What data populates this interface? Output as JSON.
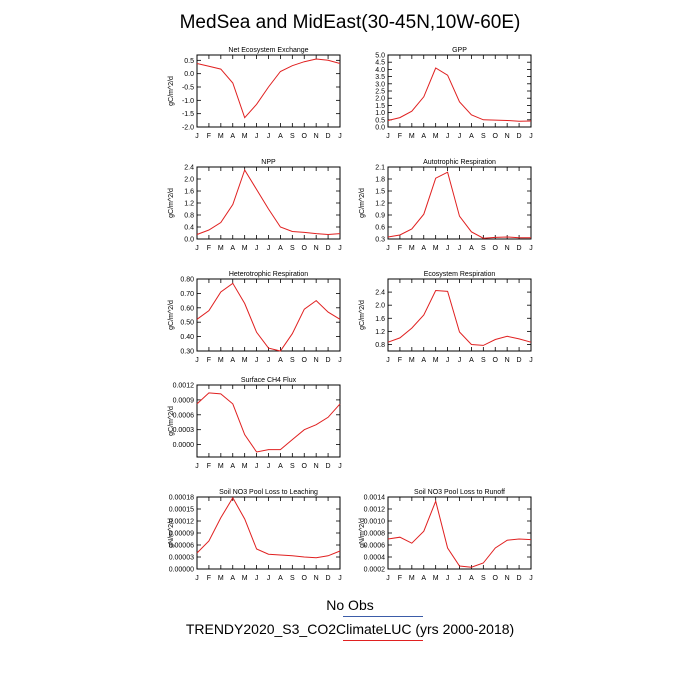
{
  "title": "MedSea and MidEast(30-45N,10W-60E)",
  "legend": {
    "obs_label": "No Obs",
    "model_label": "TRENDY2020_S3_CO2ClimateLUC (yrs 2000-2018)",
    "obs_color": "#3b5ca8",
    "model_color": "#e02020"
  },
  "chart_data": [
    {
      "type": "line",
      "title": "Net Ecosystem Exchange",
      "ylabel": "gC/m^2/d",
      "categories": [
        "J",
        "F",
        "M",
        "A",
        "M",
        "J",
        "J",
        "A",
        "S",
        "O",
        "N",
        "D",
        "J"
      ],
      "ylim": [
        -2.0,
        0.7
      ],
      "yticks": [
        -2.0,
        -1.5,
        -1.0,
        -0.5,
        0.0,
        0.5
      ],
      "ytick_labels": [
        "-2.0",
        "-1.5",
        "-1.0",
        "-0.5",
        "0.0",
        "0.5"
      ],
      "series": [
        {
          "values": [
            0.38,
            0.28,
            0.17,
            -0.35,
            -1.65,
            -1.15,
            -0.5,
            0.08,
            0.3,
            0.45,
            0.55,
            0.5,
            0.38
          ]
        }
      ]
    },
    {
      "type": "line",
      "title": "GPP",
      "ylabel": "",
      "categories": [
        "J",
        "F",
        "M",
        "A",
        "M",
        "J",
        "J",
        "A",
        "S",
        "O",
        "N",
        "D",
        "J"
      ],
      "ylim": [
        0.0,
        5.0
      ],
      "yticks": [
        0.0,
        0.5,
        1.0,
        1.5,
        2.0,
        2.5,
        3.0,
        3.5,
        4.0,
        4.5,
        5.0
      ],
      "ytick_labels": [
        "0.0",
        "0.5",
        "1.0",
        "1.5",
        "2.0",
        "2.5",
        "3.0",
        "3.5",
        "4.0",
        "4.5",
        "5.0"
      ],
      "series": [
        {
          "values": [
            0.45,
            0.65,
            1.1,
            2.1,
            4.1,
            3.6,
            1.75,
            0.85,
            0.5,
            0.48,
            0.45,
            0.4,
            0.42
          ]
        }
      ]
    },
    {
      "type": "line",
      "title": "NPP",
      "ylabel": "gC/m^2/d",
      "categories": [
        "J",
        "F",
        "M",
        "A",
        "M",
        "J",
        "J",
        "A",
        "S",
        "O",
        "N",
        "D",
        "J"
      ],
      "ylim": [
        0.0,
        2.4
      ],
      "yticks": [
        0.0,
        0.4,
        0.8,
        1.2,
        1.6,
        2.0,
        2.4
      ],
      "ytick_labels": [
        "0.0",
        "0.4",
        "0.8",
        "1.2",
        "1.6",
        "2.0",
        "2.4"
      ],
      "series": [
        {
          "values": [
            0.15,
            0.3,
            0.55,
            1.15,
            2.3,
            1.65,
            1.0,
            0.4,
            0.25,
            0.22,
            0.18,
            0.15,
            0.18
          ]
        }
      ]
    },
    {
      "type": "line",
      "title": "Autotrophic Respiration",
      "ylabel": "gC/m^2/d",
      "categories": [
        "J",
        "F",
        "M",
        "A",
        "M",
        "J",
        "J",
        "A",
        "S",
        "O",
        "N",
        "D",
        "J"
      ],
      "ylim": [
        0.3,
        2.1
      ],
      "yticks": [
        0.3,
        0.6,
        0.9,
        1.2,
        1.5,
        1.8,
        2.1
      ],
      "ytick_labels": [
        "0.3",
        "0.6",
        "0.9",
        "1.2",
        "1.5",
        "1.8",
        "2.1"
      ],
      "series": [
        {
          "values": [
            0.35,
            0.4,
            0.55,
            0.92,
            1.82,
            1.97,
            0.87,
            0.48,
            0.32,
            0.34,
            0.35,
            0.33,
            0.33
          ]
        }
      ]
    },
    {
      "type": "line",
      "title": "Heterotrophic Respiration",
      "ylabel": "gC/m^2/d",
      "categories": [
        "J",
        "F",
        "M",
        "A",
        "M",
        "J",
        "J",
        "A",
        "S",
        "O",
        "N",
        "D",
        "J"
      ],
      "ylim": [
        0.3,
        0.8
      ],
      "yticks": [
        0.3,
        0.4,
        0.5,
        0.6,
        0.7,
        0.8
      ],
      "ytick_labels": [
        "0.30",
        "0.40",
        "0.50",
        "0.60",
        "0.70",
        "0.80"
      ],
      "series": [
        {
          "values": [
            0.52,
            0.58,
            0.71,
            0.77,
            0.63,
            0.43,
            0.32,
            0.3,
            0.42,
            0.59,
            0.65,
            0.57,
            0.52
          ]
        }
      ]
    },
    {
      "type": "line",
      "title": "Ecosystem Respiration",
      "ylabel": "gC/m^2/d",
      "categories": [
        "J",
        "F",
        "M",
        "A",
        "M",
        "J",
        "J",
        "A",
        "S",
        "O",
        "N",
        "D",
        "J"
      ],
      "ylim": [
        0.6,
        2.8
      ],
      "yticks": [
        0.8,
        1.2,
        1.6,
        2.0,
        2.4
      ],
      "ytick_labels": [
        "0.8",
        "1.2",
        "1.6",
        "2.0",
        "2.4"
      ],
      "series": [
        {
          "values": [
            0.87,
            1.0,
            1.3,
            1.7,
            2.45,
            2.42,
            1.18,
            0.8,
            0.77,
            0.95,
            1.05,
            0.97,
            0.87
          ]
        }
      ]
    },
    {
      "type": "line",
      "title": "Surface CH4 Flux",
      "ylabel": "gC/m^2/d",
      "categories": [
        "J",
        "F",
        "M",
        "A",
        "M",
        "J",
        "J",
        "A",
        "S",
        "O",
        "N",
        "D",
        "J"
      ],
      "ylim": [
        -0.00025,
        0.0012
      ],
      "yticks": [
        0.0,
        0.0003,
        0.0006,
        0.0009,
        0.0012
      ],
      "ytick_labels": [
        "0.0000",
        "0.0003",
        "0.0006",
        "0.0009",
        "0.0012"
      ],
      "series": [
        {
          "values": [
            0.00082,
            0.00104,
            0.00102,
            0.00082,
            0.0002,
            -0.00015,
            -0.0001,
            -0.0001,
            0.0001,
            0.0003,
            0.0004,
            0.00055,
            0.00082
          ]
        }
      ]
    },
    {
      "type": "line",
      "title": "Soil NO3 Pool Loss to Leaching",
      "ylabel": "gN/m^2/d",
      "categories": [
        "J",
        "F",
        "M",
        "A",
        "M",
        "J",
        "J",
        "A",
        "S",
        "O",
        "N",
        "D",
        "J"
      ],
      "ylim": [
        0.0,
        0.00018
      ],
      "yticks": [
        0.0,
        3e-05,
        6e-05,
        9e-05,
        0.00012,
        0.00015,
        0.00018
      ],
      "ytick_labels": [
        "0.00000",
        "0.00003",
        "0.00006",
        "0.00009",
        "0.00012",
        "0.00015",
        "0.00018"
      ],
      "series": [
        {
          "values": [
            4e-05,
            7e-05,
            0.000128,
            0.000178,
            0.000125,
            5e-05,
            3.7e-05,
            3.5e-05,
            3.3e-05,
            3e-05,
            2.8e-05,
            3.3e-05,
            4.5e-05
          ]
        }
      ]
    },
    {
      "type": "line",
      "title": "Soil NO3 Pool Loss to Runoff",
      "ylabel": "gN/m^2/d",
      "categories": [
        "J",
        "F",
        "M",
        "A",
        "M",
        "J",
        "J",
        "A",
        "S",
        "O",
        "N",
        "D",
        "J"
      ],
      "ylim": [
        0.0002,
        0.0014
      ],
      "yticks": [
        0.0002,
        0.0004,
        0.0006,
        0.0008,
        0.001,
        0.0012,
        0.0014
      ],
      "ytick_labels": [
        "0.0002",
        "0.0004",
        "0.0006",
        "0.0008",
        "0.0010",
        "0.0012",
        "0.0014"
      ],
      "series": [
        {
          "values": [
            0.0007,
            0.00073,
            0.00063,
            0.00083,
            0.00133,
            0.00055,
            0.00025,
            0.00023,
            0.0003,
            0.00055,
            0.00068,
            0.0007,
            0.00069
          ]
        }
      ]
    }
  ]
}
